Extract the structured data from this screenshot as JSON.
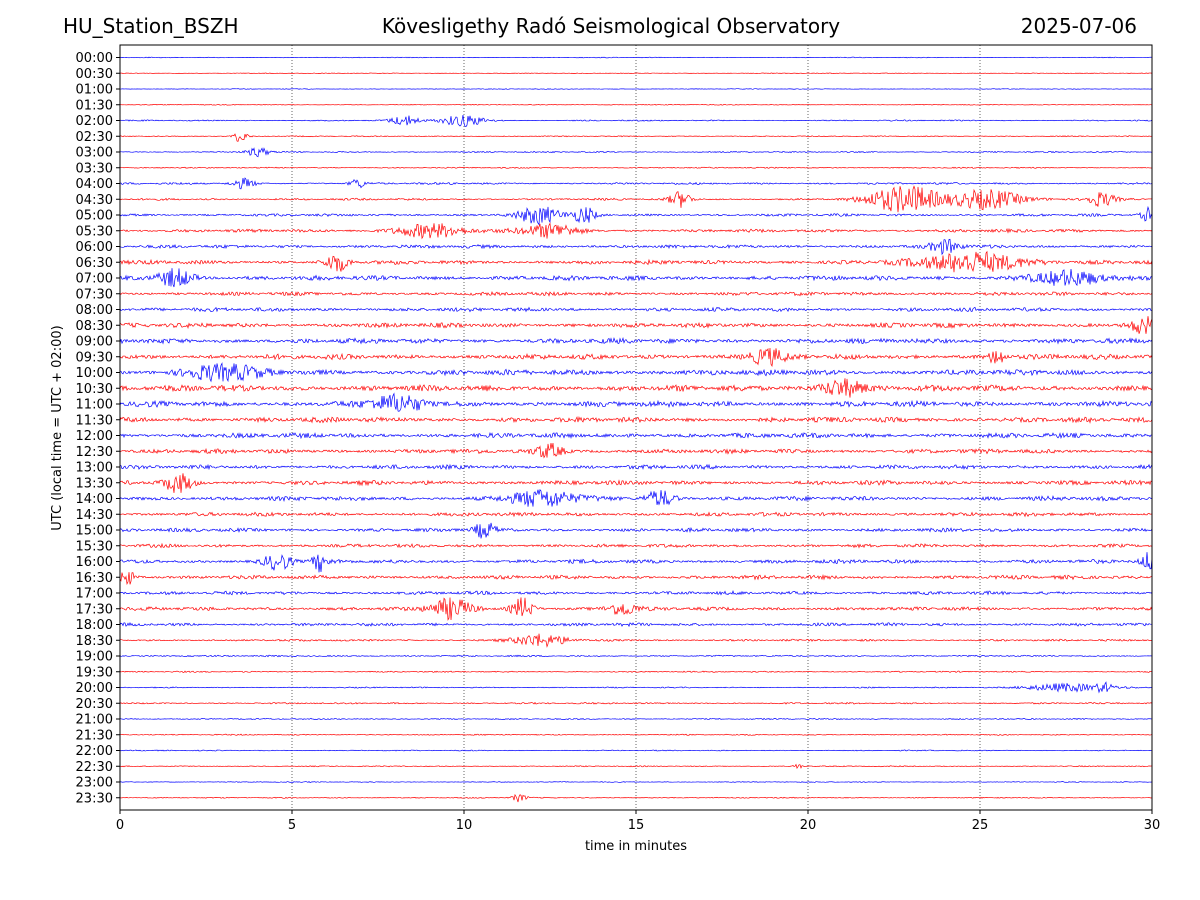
{
  "header": {
    "station": "HU_Station_BSZH",
    "observatory": "Kövesligethy Radó Seismological Observatory",
    "date": "2025-07-06"
  },
  "chart_data": {
    "type": "line",
    "title": "Kövesligethy Radó Seismological Observatory",
    "xlabel": "time in minutes",
    "ylabel": "UTC (local time = UTC + 02:00)",
    "xlim": [
      0,
      30
    ],
    "x_ticks": [
      0,
      5,
      10,
      15,
      20,
      25,
      30
    ],
    "x_tick_labels": [
      "0",
      "5",
      "10",
      "15",
      "20",
      "25",
      "30"
    ],
    "grid": "vertical dotted lines at x ticks",
    "row_labels": [
      "00:00",
      "00:30",
      "01:00",
      "01:30",
      "02:00",
      "02:30",
      "03:00",
      "03:30",
      "04:00",
      "04:30",
      "05:00",
      "05:30",
      "06:00",
      "06:30",
      "07:00",
      "07:30",
      "08:00",
      "08:30",
      "09:00",
      "09:30",
      "10:00",
      "10:30",
      "11:00",
      "11:30",
      "12:00",
      "12:30",
      "13:00",
      "13:30",
      "14:00",
      "14:30",
      "15:00",
      "15:30",
      "16:00",
      "16:30",
      "17:00",
      "17:30",
      "18:00",
      "18:30",
      "19:00",
      "19:30",
      "20:00",
      "20:30",
      "21:00",
      "21:30",
      "22:00",
      "22:30",
      "23:00",
      "23:30"
    ],
    "colors": [
      "#0000ff",
      "#ff0000"
    ],
    "noise_level": [
      0.3,
      0.25,
      0.25,
      0.3,
      0.5,
      0.4,
      0.5,
      0.45,
      0.8,
      0.8,
      1.0,
      1.2,
      1.3,
      1.6,
      1.8,
      1.4,
      1.5,
      1.8,
      2.0,
      2.0,
      2.2,
      2.4,
      2.2,
      2.0,
      1.9,
      1.7,
      1.6,
      1.7,
      1.7,
      1.5,
      1.4,
      1.3,
      1.5,
      1.5,
      1.3,
      1.4,
      1.2,
      0.8,
      0.6,
      0.5,
      0.45,
      0.6,
      0.5,
      0.45,
      0.4,
      0.4,
      0.35,
      0.4
    ],
    "events": [
      {
        "row": 4,
        "t": 8.3,
        "amp": 5,
        "dur": 0.4
      },
      {
        "row": 4,
        "t": 10.0,
        "amp": 6,
        "dur": 0.6
      },
      {
        "row": 5,
        "t": 3.5,
        "amp": 6,
        "dur": 0.2
      },
      {
        "row": 6,
        "t": 4.0,
        "amp": 5,
        "dur": 0.3
      },
      {
        "row": 8,
        "t": 3.6,
        "amp": 5,
        "dur": 0.3
      },
      {
        "row": 8,
        "t": 6.9,
        "amp": 5,
        "dur": 0.2
      },
      {
        "row": 9,
        "t": 16.3,
        "amp": 8,
        "dur": 0.3
      },
      {
        "row": 9,
        "t": 22.8,
        "amp": 14,
        "dur": 1.0
      },
      {
        "row": 9,
        "t": 25.2,
        "amp": 10,
        "dur": 1.0
      },
      {
        "row": 9,
        "t": 28.5,
        "amp": 7,
        "dur": 0.4
      },
      {
        "row": 10,
        "t": 12.2,
        "amp": 9,
        "dur": 0.6
      },
      {
        "row": 10,
        "t": 13.5,
        "amp": 8,
        "dur": 0.3
      },
      {
        "row": 10,
        "t": 29.9,
        "amp": 7,
        "dur": 0.2
      },
      {
        "row": 11,
        "t": 9.0,
        "amp": 7,
        "dur": 1.0
      },
      {
        "row": 11,
        "t": 12.5,
        "amp": 7,
        "dur": 0.8
      },
      {
        "row": 12,
        "t": 24.0,
        "amp": 7,
        "dur": 0.4
      },
      {
        "row": 13,
        "t": 6.3,
        "amp": 9,
        "dur": 0.3
      },
      {
        "row": 13,
        "t": 24.8,
        "amp": 10,
        "dur": 1.5
      },
      {
        "row": 14,
        "t": 1.6,
        "amp": 9,
        "dur": 0.5
      },
      {
        "row": 14,
        "t": 27.5,
        "amp": 7,
        "dur": 1.0
      },
      {
        "row": 17,
        "t": 29.8,
        "amp": 8,
        "dur": 0.4
      },
      {
        "row": 19,
        "t": 18.8,
        "amp": 8,
        "dur": 0.5
      },
      {
        "row": 19,
        "t": 25.5,
        "amp": 9,
        "dur": 0.2
      },
      {
        "row": 20,
        "t": 3.0,
        "amp": 8,
        "dur": 1.0
      },
      {
        "row": 21,
        "t": 21.0,
        "amp": 9,
        "dur": 0.6
      },
      {
        "row": 22,
        "t": 8.0,
        "amp": 8,
        "dur": 0.8
      },
      {
        "row": 25,
        "t": 12.5,
        "amp": 7,
        "dur": 0.4
      },
      {
        "row": 27,
        "t": 1.7,
        "amp": 9,
        "dur": 0.4
      },
      {
        "row": 28,
        "t": 12.3,
        "amp": 8,
        "dur": 1.0
      },
      {
        "row": 28,
        "t": 15.7,
        "amp": 8,
        "dur": 0.4
      },
      {
        "row": 30,
        "t": 10.6,
        "amp": 8,
        "dur": 0.3
      },
      {
        "row": 32,
        "t": 4.6,
        "amp": 8,
        "dur": 0.4
      },
      {
        "row": 32,
        "t": 5.8,
        "amp": 9,
        "dur": 0.2
      },
      {
        "row": 32,
        "t": 29.9,
        "amp": 9,
        "dur": 0.2
      },
      {
        "row": 33,
        "t": 0.2,
        "amp": 8,
        "dur": 0.2
      },
      {
        "row": 35,
        "t": 9.6,
        "amp": 10,
        "dur": 0.6
      },
      {
        "row": 35,
        "t": 11.7,
        "amp": 11,
        "dur": 0.3
      },
      {
        "row": 35,
        "t": 14.6,
        "amp": 7,
        "dur": 0.4
      },
      {
        "row": 37,
        "t": 12.2,
        "amp": 6,
        "dur": 0.8
      },
      {
        "row": 40,
        "t": 27.5,
        "amp": 4,
        "dur": 1.2
      },
      {
        "row": 40,
        "t": 28.6,
        "amp": 4,
        "dur": 0.2
      },
      {
        "row": 45,
        "t": 19.7,
        "amp": 4,
        "dur": 0.1
      },
      {
        "row": 47,
        "t": 11.6,
        "amp": 4,
        "dur": 0.2
      }
    ]
  }
}
